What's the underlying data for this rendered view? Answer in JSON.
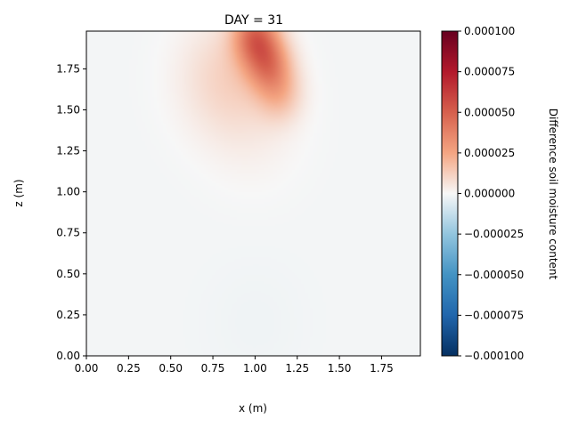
{
  "chart_data": {
    "type": "heatmap",
    "title": "DAY = 31",
    "xlabel": "x (m)",
    "ylabel": "z (m)",
    "xlim": [
      0.0,
      1.98
    ],
    "ylim": [
      0.0,
      1.98
    ],
    "xticks": [
      "0.00",
      "0.25",
      "0.50",
      "0.75",
      "1.00",
      "1.25",
      "1.50",
      "1.75"
    ],
    "xtick_values": [
      0.0,
      0.25,
      0.5,
      0.75,
      1.0,
      1.25,
      1.5,
      1.75
    ],
    "yticks": [
      "0.00",
      "0.25",
      "0.50",
      "0.75",
      "1.00",
      "1.25",
      "1.50",
      "1.75"
    ],
    "ytick_values": [
      0.0,
      0.25,
      0.5,
      0.75,
      1.0,
      1.25,
      1.5,
      1.75
    ],
    "colormap": "RdBu_r",
    "colorbar": {
      "label": "Difference soil moisture content",
      "vmin": -0.0001,
      "vmax": 0.0001,
      "ticks": [
        "0.000100",
        "0.000075",
        "0.000050",
        "0.000025",
        "0.000000",
        "−0.000025",
        "−0.000050",
        "−0.000075",
        "−0.000100"
      ],
      "tick_values": [
        0.0001,
        7.5e-05,
        5e-05,
        2.5e-05,
        0.0,
        -2.5e-05,
        -5e-05,
        -7.5e-05,
        -0.0001
      ]
    },
    "features": [
      {
        "x": 1.0,
        "z": 1.95,
        "value": 4e-05
      },
      {
        "x": 1.08,
        "z": 1.78,
        "value": 3.2e-05
      },
      {
        "x": 1.15,
        "z": 1.6,
        "value": 1.5e-05
      },
      {
        "x": 0.85,
        "z": 1.7,
        "value": 1.2e-05
      },
      {
        "x": 1.0,
        "z": 1.35,
        "value": 5e-06
      },
      {
        "x": 1.0,
        "z": 0.2,
        "value": -2e-06
      }
    ],
    "background_value": -1e-06,
    "grid": false
  }
}
